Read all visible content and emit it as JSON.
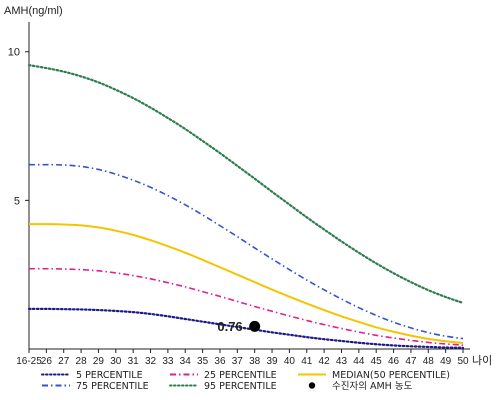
{
  "chart_data": {
    "type": "line",
    "ylabel": "AMH(ng/ml)",
    "xlabel": "나이",
    "ylim": [
      0,
      11
    ],
    "y_ticks": [
      5,
      10
    ],
    "categories": [
      "16-25",
      "26",
      "27",
      "28",
      "29",
      "30",
      "31",
      "32",
      "33",
      "34",
      "35",
      "36",
      "37",
      "38",
      "39",
      "40",
      "41",
      "42",
      "43",
      "44",
      "45",
      "46",
      "47",
      "48",
      "49",
      "50"
    ],
    "series": [
      {
        "name": "5 PERCENTILE",
        "color": "#1a1a8c",
        "style": "dotted",
        "values": [
          1.35,
          1.35,
          1.34,
          1.33,
          1.31,
          1.28,
          1.24,
          1.18,
          1.1,
          1.01,
          0.92,
          0.83,
          0.74,
          0.65,
          0.56,
          0.48,
          0.4,
          0.33,
          0.27,
          0.21,
          0.16,
          0.12,
          0.09,
          0.07,
          0.05,
          0.04
        ]
      },
      {
        "name": "25 PERCENTILE",
        "color": "#e0208c",
        "style": "dashdot",
        "values": [
          2.7,
          2.7,
          2.69,
          2.67,
          2.63,
          2.56,
          2.47,
          2.36,
          2.23,
          2.09,
          1.93,
          1.77,
          1.6,
          1.43,
          1.27,
          1.11,
          0.96,
          0.82,
          0.69,
          0.57,
          0.46,
          0.37,
          0.29,
          0.22,
          0.17,
          0.13
        ]
      },
      {
        "name": "MEDIAN(50 PERCENTILE)",
        "color": "#f5c400",
        "style": "solid",
        "values": [
          4.2,
          4.2,
          4.19,
          4.16,
          4.09,
          3.98,
          3.84,
          3.66,
          3.46,
          3.24,
          3.0,
          2.75,
          2.5,
          2.25,
          2.0,
          1.76,
          1.53,
          1.31,
          1.1,
          0.91,
          0.73,
          0.58,
          0.45,
          0.34,
          0.26,
          0.2
        ]
      },
      {
        "name": "75 PERCENTILE",
        "color": "#3355cc",
        "style": "dashdot",
        "values": [
          6.2,
          6.2,
          6.19,
          6.14,
          6.04,
          5.88,
          5.68,
          5.44,
          5.16,
          4.85,
          4.51,
          4.15,
          3.78,
          3.4,
          3.03,
          2.67,
          2.32,
          1.99,
          1.68,
          1.39,
          1.13,
          0.9,
          0.71,
          0.55,
          0.43,
          0.35
        ]
      },
      {
        "name": "95 PERCENTILE",
        "color": "#2e7d4f",
        "style": "dotted",
        "values": [
          9.55,
          9.45,
          9.33,
          9.17,
          8.97,
          8.72,
          8.44,
          8.12,
          7.77,
          7.4,
          7.0,
          6.59,
          6.16,
          5.73,
          5.29,
          4.86,
          4.43,
          4.02,
          3.62,
          3.24,
          2.88,
          2.55,
          2.25,
          1.98,
          1.75,
          1.55
        ]
      }
    ],
    "annotation": {
      "label": "0.76",
      "category": "38",
      "value": 0.76,
      "legend_label": "수진자의 AMH 농도"
    }
  }
}
